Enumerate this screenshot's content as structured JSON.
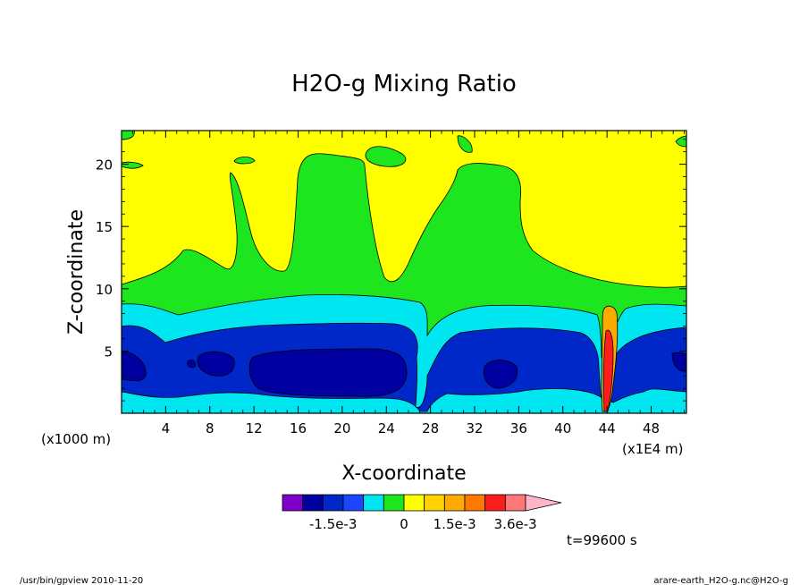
{
  "chart_data": {
    "type": "heatmap",
    "title": "H2O-g Mixing Ratio",
    "xlabel": "X-coordinate",
    "ylabel": "Z-coordinate",
    "x_unit_left": "(x1000 m)",
    "x_unit_right": "(x1E4 m)",
    "xlim": [
      0,
      51.2
    ],
    "ylim": [
      0,
      22.7
    ],
    "x_ticks": [
      4,
      8,
      12,
      16,
      20,
      24,
      28,
      32,
      36,
      40,
      44,
      48
    ],
    "y_ticks": [
      5,
      10,
      15,
      20
    ],
    "x_tick_labels": [
      "4",
      "8",
      "12",
      "16",
      "20",
      "24",
      "28",
      "32",
      "36",
      "40",
      "44",
      "48"
    ],
    "y_tick_labels": [
      "5",
      "10",
      "15",
      "20"
    ],
    "colorbar": {
      "colors": [
        "#7f00c8",
        "#0000a0",
        "#0028c8",
        "#1e46ff",
        "#00e6f0",
        "#1ee61e",
        "#ffff00",
        "#ffd200",
        "#ffaa00",
        "#ff7800",
        "#ff1e1e",
        "#ff7878",
        "#ffb4c8"
      ],
      "labels": [
        "-1.5e-3",
        "0",
        "1.5e-3",
        "3.6e-3"
      ],
      "label_positions": [
        2.5,
        6,
        8.5,
        11.5
      ]
    },
    "levels": {
      "yellow": "#ffff00",
      "green": "#1ee61e",
      "cyan": "#00e6f0",
      "blue": "#0028c8",
      "navy": "#0000a0",
      "orange": "#ffaa00",
      "red": "#ff1e1e"
    }
  },
  "time_label": "t=99600 s",
  "footer_left": "/usr/bin/gpview  2010-11-20",
  "footer_right": "arare-earth_H2O-g.nc@H2O-g"
}
